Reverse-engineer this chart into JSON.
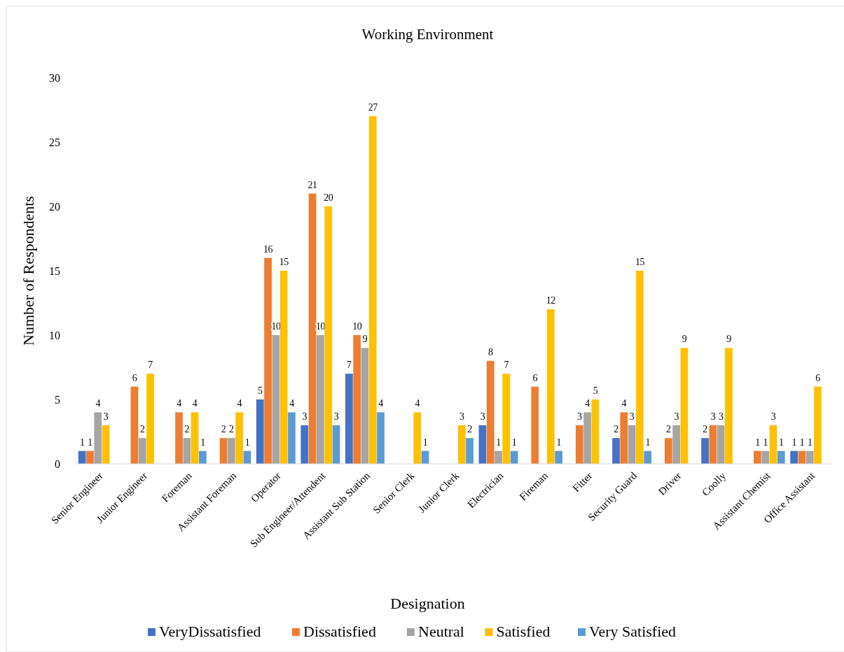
{
  "chart_data": {
    "type": "bar",
    "title": "Working Environment",
    "xlabel": "Designation",
    "ylabel": "Number of Respondents",
    "categories": [
      "Senior Engineer",
      "Junior Engineer",
      "Foreman",
      "Assistant Foreman",
      "Operator",
      "Sub Engineer/Attendent",
      "Assistant Sub Station",
      "Senior Clerk",
      "Junior Clerk",
      "Electrician",
      "Fireman",
      "Fitter",
      "Security Guard",
      "Driver",
      "Coolly",
      "Assistant Chemist",
      "Office Assistant"
    ],
    "series": [
      {
        "name": "VeryDissatisfied",
        "color": "#4472c4",
        "values": [
          1,
          null,
          null,
          null,
          5,
          3,
          7,
          null,
          null,
          3,
          null,
          null,
          2,
          null,
          2,
          null,
          1
        ]
      },
      {
        "name": "Dissatisfied",
        "color": "#ed7d31",
        "values": [
          1,
          6,
          4,
          2,
          16,
          21,
          10,
          null,
          null,
          8,
          6,
          3,
          4,
          2,
          3,
          1,
          1
        ]
      },
      {
        "name": "Neutral",
        "color": "#a5a5a5",
        "values": [
          4,
          2,
          2,
          2,
          10,
          10,
          9,
          null,
          null,
          1,
          null,
          4,
          3,
          3,
          3,
          1,
          1
        ]
      },
      {
        "name": "Satisfied",
        "color": "#ffc000",
        "values": [
          3,
          7,
          4,
          4,
          15,
          20,
          27,
          4,
          3,
          7,
          12,
          5,
          15,
          9,
          9,
          3,
          6
        ]
      },
      {
        "name": "Very Satisfied",
        "color": "#5b9bd5",
        "values": [
          null,
          null,
          1,
          1,
          4,
          3,
          4,
          1,
          2,
          1,
          1,
          null,
          1,
          null,
          null,
          1,
          null
        ]
      }
    ],
    "ylim": [
      0,
      30
    ],
    "yticks": [
      0,
      5,
      10,
      15,
      20,
      25,
      30
    ],
    "grid": false,
    "legend": "bottom",
    "data_labels": true
  }
}
